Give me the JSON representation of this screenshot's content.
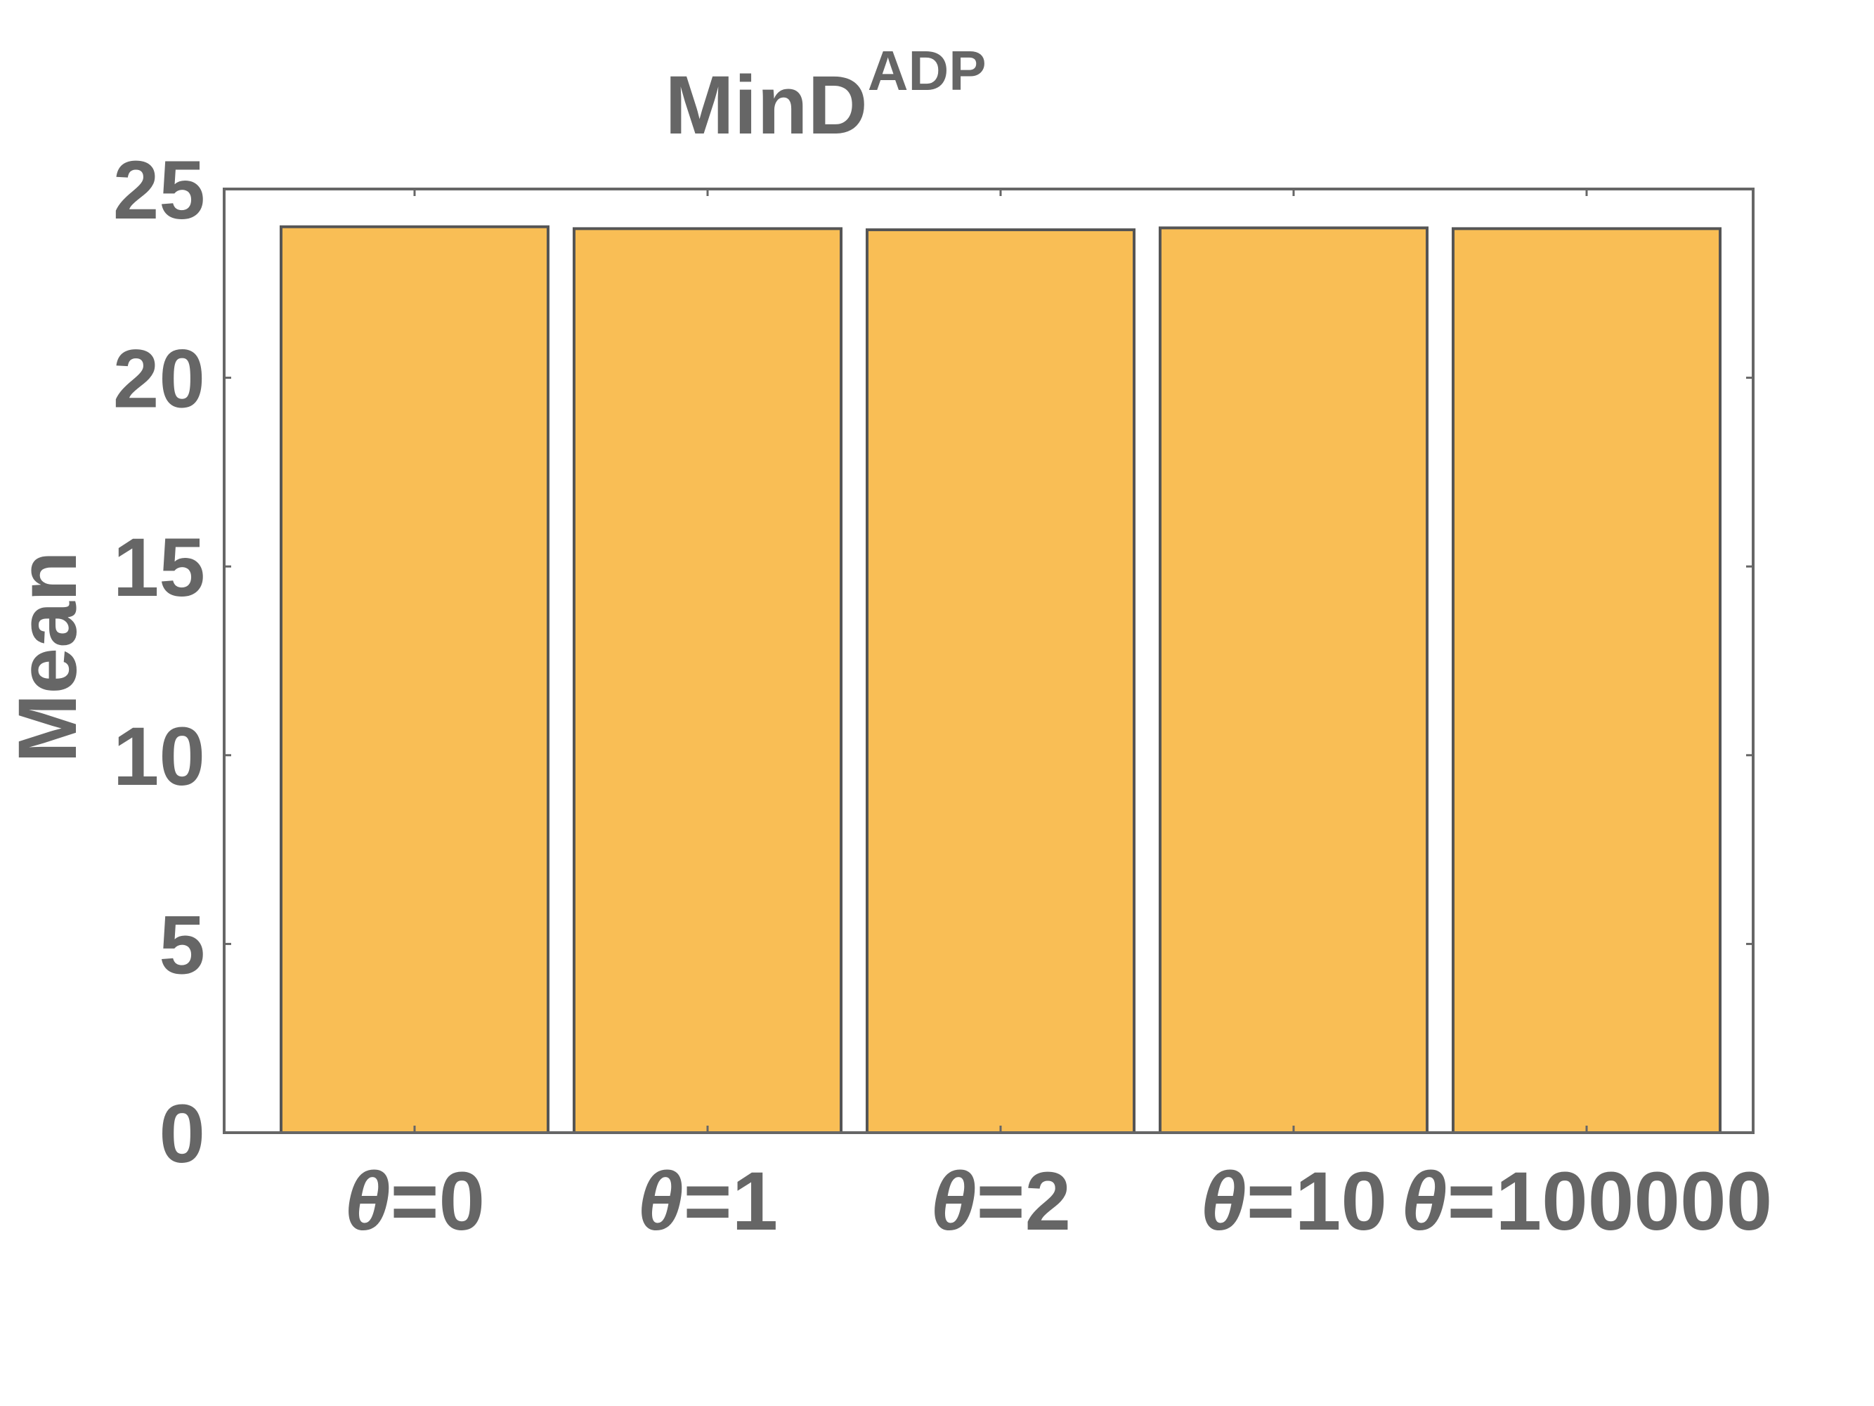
{
  "chart_data": {
    "type": "bar",
    "title": "MinD",
    "title_superscript": "ADP",
    "ylabel": "Mean",
    "xlabel": "",
    "categories": [
      "θ=0",
      "θ=1",
      "θ=2",
      "θ=10",
      "θ=100000"
    ],
    "category_symbol": "θ",
    "category_values": [
      "=0",
      "=1",
      "=2",
      "=10",
      "=100000"
    ],
    "values": [
      24.0,
      23.95,
      23.92,
      23.97,
      23.95
    ],
    "ylim": [
      0,
      25
    ],
    "yticks": [
      0,
      5,
      10,
      15,
      20,
      25
    ],
    "grid": false,
    "legend": "none",
    "bar_color": "#F9BE55",
    "edge_color": "#555555",
    "text_color": "#666666"
  }
}
